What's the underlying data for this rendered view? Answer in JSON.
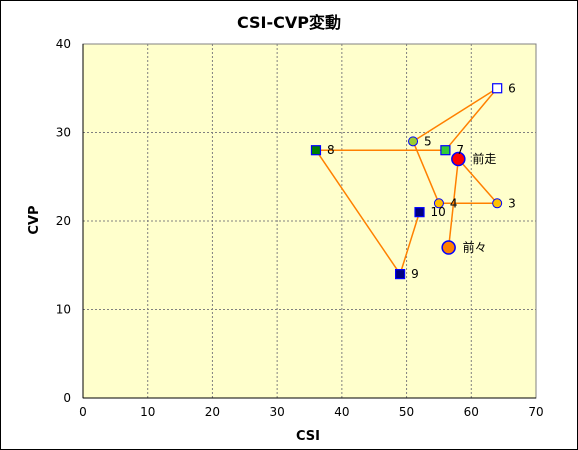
{
  "chart_data": {
    "type": "scatter",
    "title": "CSI-CVP変動",
    "xlabel": "CSI",
    "ylabel": "CVP",
    "xlim": [
      0,
      70
    ],
    "ylim": [
      0,
      40
    ],
    "xticks": [
      "0",
      "10",
      "20",
      "30",
      "40",
      "50",
      "60",
      "70"
    ],
    "yticks": [
      "0",
      "10",
      "20",
      "30",
      "40"
    ],
    "grid": true,
    "plot_background": "#ffffcc",
    "line_color": "#ff8000",
    "points": [
      {
        "label": "前々",
        "x": 56.5,
        "y": 17,
        "marker": "circle-large",
        "fill": "#ff8000",
        "stroke": "#0000ff"
      },
      {
        "label": "前走",
        "x": 58,
        "y": 27,
        "marker": "circle-large",
        "fill": "#ff0000",
        "stroke": "#0000ff"
      },
      {
        "label": "3",
        "x": 64,
        "y": 22,
        "marker": "circle",
        "fill": "#ffc000",
        "stroke": "#0000ff"
      },
      {
        "label": "4",
        "x": 55,
        "y": 22,
        "marker": "circle",
        "fill": "#ffc000",
        "stroke": "#0000ff"
      },
      {
        "label": "5",
        "x": 51,
        "y": 29,
        "marker": "circle",
        "fill": "#99cc33",
        "stroke": "#0000ff"
      },
      {
        "label": "6",
        "x": 64,
        "y": 35,
        "marker": "square",
        "fill": "#ffffff",
        "stroke": "#0000ff"
      },
      {
        "label": "7",
        "x": 56,
        "y": 28,
        "marker": "square",
        "fill": "#33cc33",
        "stroke": "#0000ff"
      },
      {
        "label": "8",
        "x": 36,
        "y": 28,
        "marker": "square",
        "fill": "#008000",
        "stroke": "#0000ff"
      },
      {
        "label": "9",
        "x": 49,
        "y": 14,
        "marker": "square",
        "fill": "#000080",
        "stroke": "#0000ff"
      },
      {
        "label": "10",
        "x": 52,
        "y": 21,
        "marker": "square",
        "fill": "#000080",
        "stroke": "#0000ff"
      }
    ]
  }
}
